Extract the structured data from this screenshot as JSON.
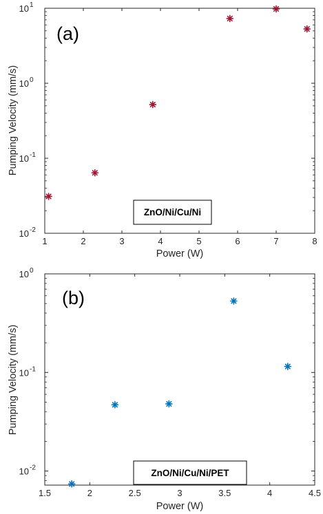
{
  "chart_data": [
    {
      "type": "scatter",
      "panel_label": "(a)",
      "annotation": "ZnO/Ni/Cu/Ni",
      "xlabel": "Power (W)",
      "ylabel": "Pumping Velocity (mm/s)",
      "xlim": [
        1,
        8
      ],
      "ylim": [
        0.01,
        10
      ],
      "yscale": "log",
      "x_ticks": [
        "1",
        "2",
        "3",
        "4",
        "5",
        "6",
        "7",
        "8"
      ],
      "y_ticks": [
        {
          "base": "10",
          "exp": "-2"
        },
        {
          "base": "10",
          "exp": "-1"
        },
        {
          "base": "10",
          "exp": "0"
        },
        {
          "base": "10",
          "exp": "1"
        }
      ],
      "marker_color": "#a2142f",
      "series": [
        {
          "x": [
            1.1,
            2.3,
            3.8,
            5.8,
            7.0,
            7.8
          ],
          "y": [
            0.031,
            0.064,
            0.52,
            7.3,
            9.8,
            5.3
          ]
        }
      ]
    },
    {
      "type": "scatter",
      "panel_label": "(b)",
      "annotation": "ZnO/Ni/Cu/Ni/PET",
      "xlabel": "Power (W)",
      "ylabel": "Pumping Velocity (mm/s)",
      "xlim": [
        1.5,
        4.5
      ],
      "ylim": [
        0.0072,
        1
      ],
      "yscale": "log",
      "x_ticks": [
        "1.5",
        "2",
        "2.5",
        "3",
        "3.5",
        "4",
        "4.5"
      ],
      "y_ticks": [
        {
          "base": "10",
          "exp": "-2"
        },
        {
          "base": "10",
          "exp": "-1"
        },
        {
          "base": "10",
          "exp": "0"
        }
      ],
      "marker_color": "#0072bd",
      "series": [
        {
          "x": [
            1.8,
            2.28,
            2.88,
            3.6,
            4.2
          ],
          "y": [
            0.0074,
            0.047,
            0.048,
            0.53,
            0.115
          ]
        }
      ]
    }
  ]
}
